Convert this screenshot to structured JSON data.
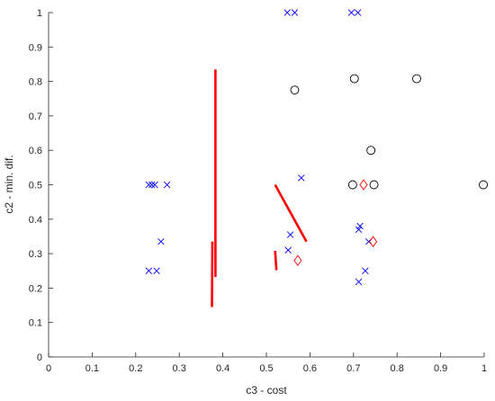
{
  "chart_data": {
    "type": "scatter",
    "title": "",
    "xlabel": "c3 - cost",
    "ylabel": "c2 - min. dif.",
    "xlim": [
      0,
      1
    ],
    "ylim": [
      0,
      1
    ],
    "xticks": [
      "0",
      "0.1",
      "0.2",
      "0.3",
      "0.4",
      "0.5",
      "0.6",
      "0.7",
      "0.8",
      "0.9",
      "1"
    ],
    "yticks": [
      "0",
      "0.1",
      "0.2",
      "0.3",
      "0.4",
      "0.5",
      "0.6",
      "0.7",
      "0.8",
      "0.9",
      "1"
    ],
    "grid": false,
    "legend": "none",
    "series": [
      {
        "marker": "x",
        "color": "#0000FF",
        "points": [
          [
            0.548,
            1.0
          ],
          [
            0.565,
            1.0
          ],
          [
            0.695,
            1.0
          ],
          [
            0.71,
            1.0
          ],
          [
            0.23,
            0.5
          ],
          [
            0.237,
            0.5
          ],
          [
            0.244,
            0.5
          ],
          [
            0.272,
            0.5
          ],
          [
            0.58,
            0.52
          ],
          [
            0.258,
            0.335
          ],
          [
            0.555,
            0.355
          ],
          [
            0.55,
            0.31
          ],
          [
            0.715,
            0.38
          ],
          [
            0.712,
            0.37
          ],
          [
            0.735,
            0.335
          ],
          [
            0.23,
            0.25
          ],
          [
            0.248,
            0.25
          ],
          [
            0.727,
            0.25
          ],
          [
            0.712,
            0.218
          ]
        ]
      },
      {
        "marker": "circle",
        "color": "#000000",
        "points": [
          [
            0.565,
            0.775
          ],
          [
            0.702,
            0.808
          ],
          [
            0.845,
            0.808
          ],
          [
            0.74,
            0.6
          ],
          [
            0.698,
            0.5
          ],
          [
            0.747,
            0.5
          ],
          [
            0.998,
            0.5
          ]
        ]
      },
      {
        "marker": "diamond",
        "color": "#FF0000",
        "points": [
          [
            0.723,
            0.5
          ],
          [
            0.745,
            0.335
          ],
          [
            0.572,
            0.28
          ]
        ]
      },
      {
        "marker": "line",
        "color": "#FF0000",
        "segments": [
          [
            [
              0.383,
              0.835
            ],
            [
              0.383,
              0.232
            ]
          ],
          [
            [
              0.376,
              0.335
            ],
            [
              0.375,
              0.145
            ]
          ],
          [
            [
              0.52,
              0.5
            ],
            [
              0.592,
              0.335
            ]
          ],
          [
            [
              0.52,
              0.308
            ],
            [
              0.523,
              0.252
            ]
          ]
        ]
      }
    ]
  }
}
